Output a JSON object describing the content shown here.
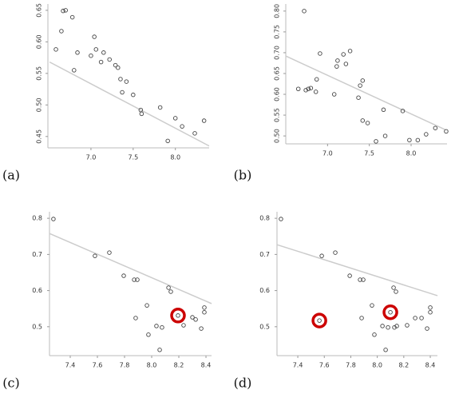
{
  "chart_data": [
    {
      "type": "scatter",
      "panel": "(a)",
      "color": "#444444",
      "x": [
        6.585,
        6.65,
        6.67,
        6.7,
        6.78,
        6.8,
        6.84,
        7.0,
        7.04,
        7.06,
        7.12,
        7.15,
        7.22,
        7.29,
        7.32,
        7.35,
        7.37,
        7.42,
        7.5,
        7.59,
        7.6,
        7.82,
        7.91,
        8.0,
        8.08,
        8.23,
        8.34
      ],
      "values": [
        0.588,
        0.617,
        0.649,
        0.65,
        0.639,
        0.555,
        0.583,
        0.578,
        0.608,
        0.588,
        0.568,
        0.583,
        0.572,
        0.563,
        0.559,
        0.541,
        0.52,
        0.537,
        0.516,
        0.492,
        0.486,
        0.496,
        0.443,
        0.479,
        0.466,
        0.455,
        0.475
      ],
      "trend_line": {
        "x": [
          6.51,
          8.4
        ],
        "values": [
          0.568,
          0.435
        ],
        "color": "#cccccc"
      },
      "xlim": [
        6.49,
        8.4
      ],
      "ylim": [
        0.432,
        0.66
      ],
      "xticks": [
        {
          "value": 7,
          "label": "7.0"
        },
        7.5,
        {
          "value": 8,
          "label": "8.0"
        }
      ],
      "yticks": [
        0.45,
        {
          "value": 0.5,
          "label": "0.50"
        },
        0.55,
        {
          "value": 0.6,
          "label": "0.60"
        },
        0.65
      ]
    },
    {
      "type": "scatter",
      "panel": "(b)",
      "color": "#444444",
      "x": [
        6.72,
        6.65,
        6.74,
        6.77,
        6.8,
        6.87,
        6.91,
        6.86,
        7.08,
        7.11,
        7.12,
        7.19,
        7.22,
        7.27,
        7.37,
        7.42,
        7.39,
        7.42,
        7.48,
        7.58,
        7.67,
        7.69,
        7.9,
        7.98,
        8.08,
        8.18,
        8.29,
        8.42
      ],
      "values": [
        0.8,
        0.613,
        0.61,
        0.613,
        0.615,
        0.636,
        0.698,
        0.606,
        0.6,
        0.667,
        0.681,
        0.696,
        0.673,
        0.704,
        0.592,
        0.633,
        0.621,
        0.537,
        0.531,
        0.487,
        0.563,
        0.5,
        0.56,
        0.49,
        0.49,
        0.504,
        0.519,
        0.511
      ],
      "trend_line": {
        "x": [
          6.5,
          8.41
        ],
        "values": [
          0.692,
          0.515
        ],
        "color": "#cccccc"
      },
      "xlim": [
        6.5,
        8.43
      ],
      "ylim": [
        0.481,
        0.817
      ],
      "xticks": [
        {
          "value": 7,
          "label": "7.0"
        },
        7.5,
        {
          "value": 8,
          "label": "8.0"
        }
      ],
      "yticks": [
        {
          "value": 0.5,
          "label": "0.50"
        },
        0.55,
        {
          "value": 0.6,
          "label": "0.60"
        },
        0.65,
        {
          "value": 0.7,
          "label": "0.70"
        },
        0.75,
        {
          "value": 0.8,
          "label": "0.80"
        }
      ]
    },
    {
      "type": "scatter",
      "panel": "(c)",
      "color": "#444444",
      "highlight": [
        14
      ],
      "highlight_color": "#cc0000",
      "x": [
        7.276,
        7.582,
        7.688,
        7.794,
        7.871,
        7.894,
        7.965,
        7.882,
        8.124,
        8.141,
        7.976,
        8.035,
        8.076,
        8.059,
        8.194,
        8.235,
        8.3,
        8.324,
        8.365,
        8.388,
        8.388
      ],
      "values": [
        0.798,
        0.696,
        0.705,
        0.641,
        0.63,
        0.63,
        0.559,
        0.524,
        0.608,
        0.597,
        0.478,
        0.502,
        0.498,
        0.436,
        0.531,
        0.504,
        0.526,
        0.52,
        0.495,
        0.553,
        0.54
      ],
      "trend_line": {
        "x": [
          7.247,
          8.441
        ],
        "values": [
          0.758,
          0.564
        ],
        "color": "#cccccc"
      },
      "xlim": [
        7.247,
        8.441
      ],
      "ylim": [
        0.42,
        0.818
      ],
      "xticks": [
        7.4,
        7.6,
        7.8,
        {
          "value": 8,
          "label": "8.0"
        },
        8.2,
        8.4
      ],
      "yticks": [
        0.5,
        0.6,
        0.7,
        0.8
      ]
    },
    {
      "type": "scatter",
      "panel": "(d)",
      "color": "#444444",
      "highlight": [
        8,
        15
      ],
      "highlight_color": "#cc0000",
      "x": [
        7.273,
        7.581,
        7.683,
        7.792,
        7.87,
        7.894,
        7.96,
        7.882,
        7.563,
        8.123,
        8.141,
        7.978,
        8.039,
        8.081,
        8.063,
        8.099,
        8.147,
        8.129,
        8.225,
        8.286,
        8.334,
        8.376,
        8.4,
        8.4
      ],
      "values": [
        0.798,
        0.696,
        0.705,
        0.641,
        0.63,
        0.63,
        0.559,
        0.524,
        0.517,
        0.608,
        0.597,
        0.478,
        0.502,
        0.498,
        0.436,
        0.54,
        0.502,
        0.498,
        0.504,
        0.524,
        0.524,
        0.495,
        0.553,
        0.54
      ],
      "trend_line": {
        "x": [
          7.243,
          8.454
        ],
        "values": [
          0.727,
          0.586
        ],
        "color": "#cccccc"
      },
      "xlim": [
        7.243,
        8.454
      ],
      "ylim": [
        0.42,
        0.818
      ],
      "xticks": [
        7.4,
        7.6,
        7.8,
        {
          "value": 8,
          "label": "8.0"
        },
        8.2,
        8.4
      ],
      "yticks": [
        0.5,
        0.6,
        0.7,
        0.8
      ]
    }
  ]
}
